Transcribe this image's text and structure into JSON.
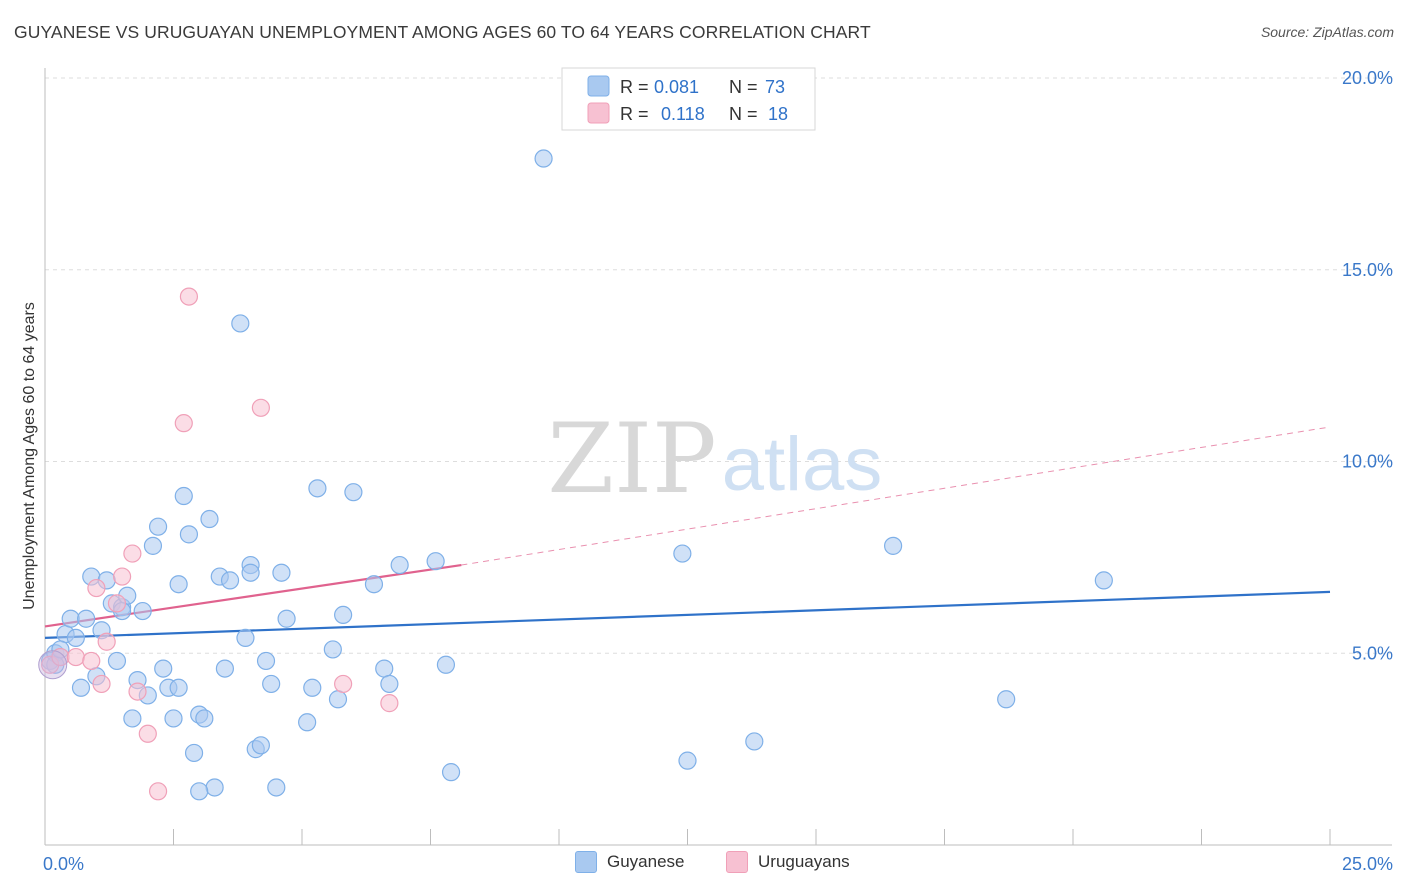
{
  "chart_data": {
    "type": "scatter",
    "title": "GUYANESE VS URUGUAYAN UNEMPLOYMENT AMONG AGES 60 TO 64 YEARS CORRELATION CHART",
    "source": "Source: ZipAtlas.com",
    "ylabel": "Unemployment Among Ages 60 to 64 years",
    "xlabel": "",
    "xlim": [
      0,
      25
    ],
    "ylim": [
      0,
      20
    ],
    "x_tick_labels": [
      "0.0%",
      "25.0%"
    ],
    "y_tick_values": [
      5,
      10,
      15,
      20
    ],
    "y_tick_labels": [
      "5.0%",
      "10.0%",
      "15.0%",
      "20.0%"
    ],
    "grid": true,
    "watermark": "ZIPatlas",
    "legend": [
      {
        "name": "Guyanese",
        "r_label": "R =",
        "r": "0.081",
        "n_label": "N =",
        "n": "73"
      },
      {
        "name": "Uruguayans",
        "r_label": "R =",
        "r": "0.118",
        "n_label": "N =",
        "n": "18"
      }
    ],
    "series": [
      {
        "name": "Guyanese",
        "color": "#7fb0e8",
        "fill": "#a9c9f0",
        "trend_color": "#2f72c9",
        "trend": {
          "x0": 0,
          "y0": 5.4,
          "x1": 25,
          "y1": 6.6,
          "dashed_from": null
        },
        "points": [
          [
            0.1,
            4.8
          ],
          [
            0.2,
            5.0
          ],
          [
            0.3,
            4.9
          ],
          [
            0.4,
            5.5
          ],
          [
            0.5,
            5.9
          ],
          [
            0.6,
            5.4
          ],
          [
            0.7,
            4.1
          ],
          [
            0.8,
            5.9
          ],
          [
            0.9,
            7.0
          ],
          [
            1.0,
            4.4
          ],
          [
            1.1,
            5.6
          ],
          [
            1.2,
            6.9
          ],
          [
            1.3,
            6.3
          ],
          [
            1.4,
            4.8
          ],
          [
            1.5,
            6.2
          ],
          [
            1.6,
            6.5
          ],
          [
            1.7,
            3.3
          ],
          [
            1.8,
            4.3
          ],
          [
            1.9,
            6.1
          ],
          [
            2.0,
            3.9
          ],
          [
            2.1,
            7.8
          ],
          [
            2.2,
            8.3
          ],
          [
            2.3,
            4.6
          ],
          [
            2.4,
            4.1
          ],
          [
            2.5,
            3.3
          ],
          [
            2.6,
            6.8
          ],
          [
            2.7,
            9.1
          ],
          [
            2.8,
            8.1
          ],
          [
            2.9,
            2.4
          ],
          [
            3.0,
            3.4
          ],
          [
            3.1,
            3.3
          ],
          [
            3.2,
            8.5
          ],
          [
            3.3,
            1.5
          ],
          [
            3.4,
            7.0
          ],
          [
            3.5,
            4.6
          ],
          [
            3.6,
            6.9
          ],
          [
            3.0,
            1.4
          ],
          [
            3.8,
            13.6
          ],
          [
            3.9,
            5.4
          ],
          [
            4.0,
            7.3
          ],
          [
            4.1,
            2.5
          ],
          [
            4.2,
            2.6
          ],
          [
            4.3,
            4.8
          ],
          [
            4.4,
            4.2
          ],
          [
            4.5,
            1.5
          ],
          [
            4.6,
            7.1
          ],
          [
            4.7,
            5.9
          ],
          [
            5.1,
            3.2
          ],
          [
            5.2,
            4.1
          ],
          [
            5.3,
            9.3
          ],
          [
            5.6,
            5.1
          ],
          [
            5.7,
            3.8
          ],
          [
            5.8,
            6.0
          ],
          [
            6.0,
            9.2
          ],
          [
            6.4,
            6.8
          ],
          [
            6.6,
            4.6
          ],
          [
            6.7,
            4.2
          ],
          [
            6.9,
            7.3
          ],
          [
            7.6,
            7.4
          ],
          [
            7.8,
            4.7
          ],
          [
            7.9,
            1.9
          ],
          [
            9.7,
            17.9
          ],
          [
            12.4,
            7.6
          ],
          [
            12.5,
            2.2
          ],
          [
            13.8,
            2.7
          ],
          [
            16.5,
            7.8
          ],
          [
            18.7,
            3.8
          ],
          [
            20.6,
            6.9
          ],
          [
            0.2,
            4.7
          ],
          [
            1.5,
            6.1
          ],
          [
            4.0,
            7.1
          ],
          [
            2.6,
            4.1
          ],
          [
            0.3,
            5.1
          ]
        ]
      },
      {
        "name": "Uruguayans",
        "color": "#f0a0b8",
        "fill": "#f7c1d2",
        "trend_color": "#e0628e",
        "trend": {
          "x0": 0,
          "y0": 5.7,
          "x1": 8.1,
          "y1": 7.3,
          "x_end": 25,
          "y_end": 10.9
        },
        "points": [
          [
            0.1,
            4.7
          ],
          [
            0.3,
            4.9
          ],
          [
            0.6,
            4.9
          ],
          [
            0.9,
            4.8
          ],
          [
            1.0,
            6.7
          ],
          [
            1.1,
            4.2
          ],
          [
            1.2,
            5.3
          ],
          [
            1.4,
            6.3
          ],
          [
            1.5,
            7.0
          ],
          [
            1.7,
            7.6
          ],
          [
            1.8,
            4.0
          ],
          [
            2.0,
            2.9
          ],
          [
            2.2,
            1.4
          ],
          [
            2.7,
            11.0
          ],
          [
            2.8,
            14.3
          ],
          [
            4.2,
            11.4
          ],
          [
            5.8,
            4.2
          ],
          [
            6.7,
            3.7
          ]
        ]
      }
    ]
  }
}
